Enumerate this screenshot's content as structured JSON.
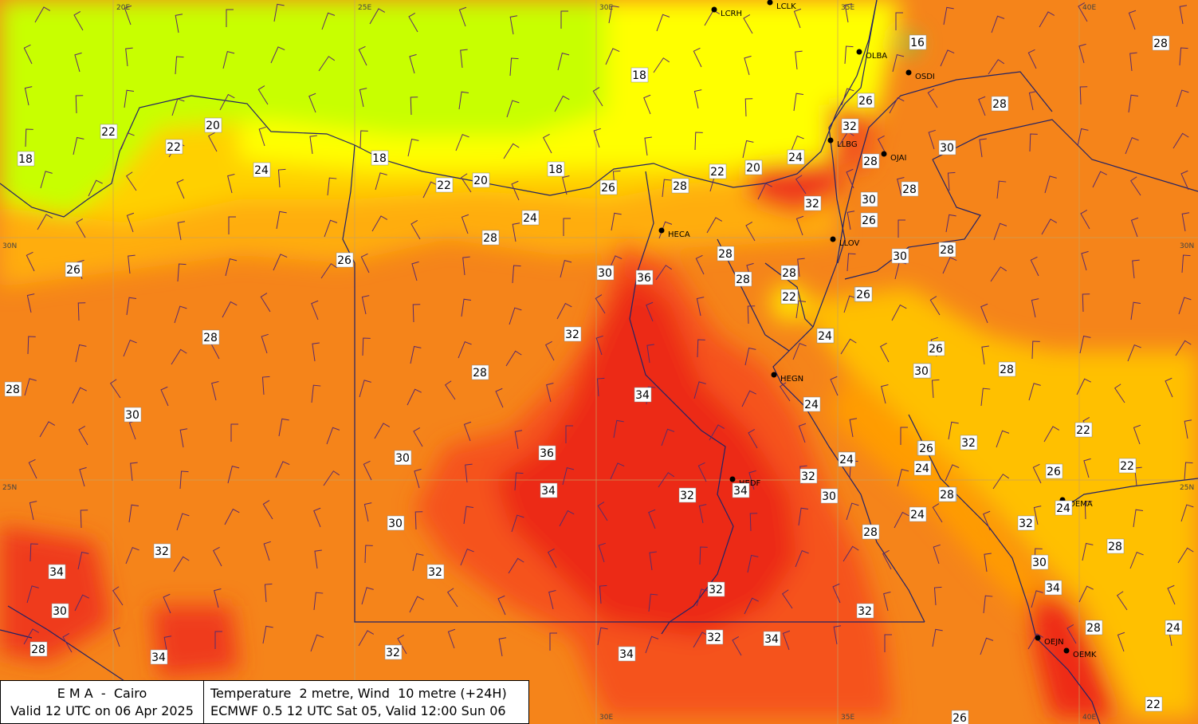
{
  "temperature_labels": [
    "18",
    "20",
    "22",
    "24",
    "18",
    "22",
    "20",
    "18",
    "26",
    "28",
    "22",
    "20",
    "24",
    "18",
    "16",
    "26",
    "28",
    "24",
    "30",
    "26",
    "32",
    "24",
    "28",
    "30",
    "26",
    "32",
    "30",
    "28",
    "28",
    "28",
    "22",
    "26",
    "28",
    "30",
    "36",
    "32",
    "34",
    "36",
    "34",
    "30",
    "28",
    "28",
    "30",
    "32",
    "32",
    "34",
    "32",
    "30",
    "26",
    "28",
    "34",
    "30",
    "32",
    "32",
    "32",
    "34",
    "28",
    "34",
    "32",
    "34",
    "26",
    "24",
    "26",
    "24",
    "26",
    "28",
    "32",
    "22",
    "22",
    "26",
    "24",
    "24",
    "30",
    "28",
    "28",
    "30",
    "28",
    "24",
    "24",
    "32",
    "30",
    "28",
    "32",
    "22",
    "26",
    "22",
    "34",
    "28",
    "24",
    "28",
    "26",
    "28",
    "24",
    "28",
    "26",
    "30"
  ],
  "stations": [
    "LCRH",
    "LCLK",
    "OLBA",
    "OSDI",
    "LLBG",
    "OJAI",
    "HECA",
    "LLOV",
    "HEGN",
    "HEDF",
    "OEMA",
    "OEJN",
    "OEMK"
  ],
  "coordinates": {
    "longitudes": [
      "20E",
      "25E",
      "30E",
      "35E",
      "40E"
    ],
    "latitudes": [
      "30N",
      "25N"
    ]
  },
  "caption": {
    "org": "E M A  -  Cairo",
    "valid": "Valid 12 UTC on 06 Apr 2025",
    "field": "Temperature  2 metre, Wind  10 metre (+24H)",
    "model": "ECMWF 0.5 12 UTC Sat 05, Valid 12:00 Sun 06"
  },
  "colors": {
    "t16": "#8ee84a",
    "t18": "#c8ff00",
    "t20": "#ffff00",
    "t22_26": "#ffc800",
    "t28": "#ff9900",
    "t30": "#f57a18",
    "t32": "#f5541e",
    "t34_36": "#ee1e16"
  }
}
